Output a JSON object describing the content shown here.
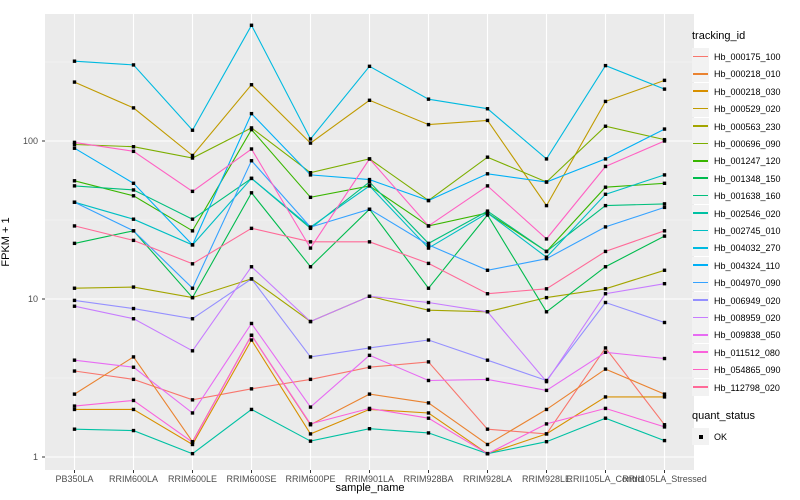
{
  "colors": {
    "panel_bg": "#EBEBEB",
    "grid": "#FFFFFF",
    "tick_text": "#4D4D4D",
    "axis_text": "#000000",
    "point": "#000000",
    "legend_key_bg": "#F2F2F2"
  },
  "y_axis": {
    "label": "FPKM + 1",
    "tick_labels": [
      "1",
      "10",
      "100"
    ],
    "tick_values": [
      1,
      10,
      100
    ]
  },
  "x_axis": {
    "label": "sample_name"
  },
  "legend": {
    "tracking_title": "tracking_id",
    "quant_title": "quant_status",
    "quant_items": [
      {
        "label": "OK",
        "marker": "black-square"
      }
    ]
  },
  "chart_data": {
    "type": "line",
    "y_scale": "log10",
    "ylim": [
      1,
      540
    ],
    "grid": "on",
    "legend_position": "right",
    "marker": "black-square",
    "title": "",
    "xlabel": "sample_name",
    "ylabel": "FPKM + 1",
    "categories": [
      "PB350LA",
      "RRIM600LA",
      "RRIM600LE",
      "RRIM600SE",
      "RRIM600PE",
      "RRIM901LA",
      "RRIM928BA",
      "RRIM928LA",
      "RRIM928LE",
      "RRII105LA_Control",
      "RRII105LA_Stressed"
    ],
    "series": [
      {
        "name": "Hb_000175_100",
        "color": "#F8766D",
        "values": [
          3.5,
          3.1,
          2.3,
          2.7,
          3.1,
          3.7,
          4.0,
          1.5,
          1.4,
          4.9,
          1.6
        ]
      },
      {
        "name": "Hb_000218_010",
        "color": "#EA8331",
        "values": [
          2.5,
          4.3,
          1.25,
          5.9,
          1.6,
          2.5,
          2.2,
          1.2,
          2.0,
          3.6,
          2.5
        ]
      },
      {
        "name": "Hb_000218_030",
        "color": "#D89000",
        "values": [
          2.0,
          2.0,
          1.2,
          5.5,
          1.4,
          2.0,
          1.9,
          1.05,
          1.4,
          2.4,
          2.4
        ]
      },
      {
        "name": "Hb_000529_020",
        "color": "#C09B00",
        "values": [
          236,
          162,
          81,
          227,
          97,
          181,
          127,
          135,
          39,
          178,
          242
        ]
      },
      {
        "name": "Hb_000563_230",
        "color": "#A3A500",
        "values": [
          11.7,
          11.9,
          10.2,
          13.4,
          7.2,
          10.4,
          8.5,
          8.3,
          10.2,
          11.6,
          15.2
        ]
      },
      {
        "name": "Hb_000696_090",
        "color": "#7CAE00",
        "values": [
          95,
          92,
          78,
          121,
          63,
          77,
          42,
          79,
          55,
          124,
          102
        ]
      },
      {
        "name": "Hb_001247_120",
        "color": "#39B600",
        "values": [
          56,
          45,
          27,
          118,
          44,
          52,
          29,
          35,
          20,
          51,
          54
        ]
      },
      {
        "name": "Hb_001348_150",
        "color": "#00BB4E",
        "values": [
          22.5,
          27,
          10.2,
          47,
          16,
          37,
          11.7,
          34,
          8.3,
          16,
          25
        ]
      },
      {
        "name": "Hb_001638_160",
        "color": "#00BF7D",
        "values": [
          52,
          49,
          32,
          58,
          28,
          55,
          22.5,
          36,
          20,
          39,
          40
        ]
      },
      {
        "name": "Hb_002546_020",
        "color": "#00C1A3",
        "values": [
          1.5,
          1.47,
          1.05,
          2.0,
          1.26,
          1.51,
          1.42,
          1.05,
          1.25,
          1.76,
          1.27
        ]
      },
      {
        "name": "Hb_002745_010",
        "color": "#00BFC4",
        "values": [
          41,
          32,
          22,
          58,
          28.5,
          52,
          21,
          35,
          18.4,
          46,
          61
        ]
      },
      {
        "name": "Hb_004032_270",
        "color": "#00BAE0",
        "values": [
          320,
          303,
          117,
          540,
          103,
          297,
          184,
          160,
          77,
          300,
          213
        ]
      },
      {
        "name": "Hb_004324_110",
        "color": "#00B0F6",
        "values": [
          90,
          54,
          22,
          149,
          61,
          57,
          42,
          62,
          55,
          77,
          119
        ]
      },
      {
        "name": "Hb_004970_090",
        "color": "#35A2FF",
        "values": [
          41,
          27,
          11.7,
          75,
          28.5,
          37,
          22,
          15.2,
          18,
          28.6,
          38
        ]
      },
      {
        "name": "Hb_006949_020",
        "color": "#9590FF",
        "values": [
          9.8,
          8.7,
          7.5,
          13.4,
          4.3,
          4.9,
          5.5,
          4.1,
          3.05,
          9.5,
          7.1
        ]
      },
      {
        "name": "Hb_008959_020",
        "color": "#C77CFF",
        "values": [
          9.0,
          7.5,
          4.7,
          16,
          7.2,
          10.4,
          9.5,
          8.3,
          3.0,
          10.8,
          12.5
        ]
      },
      {
        "name": "Hb_009838_050",
        "color": "#E76BF3",
        "values": [
          4.1,
          3.7,
          1.9,
          7.0,
          2.07,
          4.4,
          3.05,
          3.1,
          2.64,
          4.6,
          4.2
        ]
      },
      {
        "name": "Hb_011512_080",
        "color": "#FA62DB",
        "values": [
          2.1,
          2.28,
          1.24,
          5.9,
          1.62,
          2.03,
          1.76,
          1.05,
          1.62,
          2.03,
          1.55
        ]
      },
      {
        "name": "Hb_054865_090",
        "color": "#FF61C3",
        "values": [
          98,
          86,
          48,
          89,
          21,
          77,
          29,
          52,
          24,
          69,
          100
        ]
      },
      {
        "name": "Hb_112798_020",
        "color": "#FF6A98",
        "values": [
          29,
          23.5,
          16.7,
          28,
          23,
          23,
          16.8,
          10.8,
          11.6,
          20,
          27
        ]
      }
    ]
  }
}
